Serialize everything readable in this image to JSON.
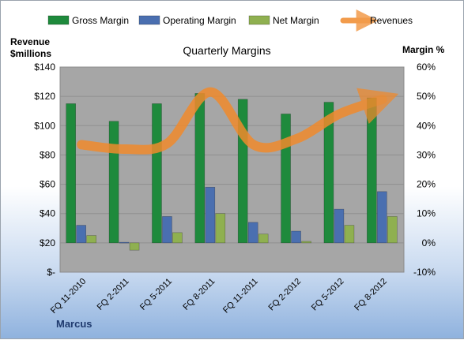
{
  "chart_data": {
    "type": "bar",
    "title": "Quarterly Margins",
    "categories": [
      "FQ 11-2010",
      "FQ 2-2011",
      "FQ 5-2011",
      "FQ 8-2011",
      "FQ 11-2011",
      "FQ 2-2012",
      "FQ 5-2012",
      "FQ 8-2012"
    ],
    "series": [
      {
        "name": "Gross Margin",
        "axis": "right",
        "color": "#1e8a3c",
        "values": [
          47.5,
          41.5,
          47.5,
          51.0,
          49.0,
          44.0,
          48.0,
          49.5
        ]
      },
      {
        "name": "Operating Margin",
        "axis": "right",
        "color": "#4a6fb0",
        "values": [
          6.0,
          0.2,
          9.0,
          19.0,
          7.0,
          4.0,
          11.5,
          17.5
        ]
      },
      {
        "name": "Net Margin",
        "axis": "right",
        "color": "#8fb050",
        "values": [
          2.5,
          -2.5,
          3.5,
          10.0,
          3.0,
          0.5,
          6.0,
          9.0
        ]
      },
      {
        "name": "Revenues",
        "axis": "left",
        "type": "line",
        "color": "#f08a2c",
        "values": [
          87,
          84,
          88,
          123,
          87,
          91,
          108,
          118
        ]
      }
    ],
    "left_axis": {
      "label_line1": "Revenue",
      "label_line2": "$millions",
      "ylim": [
        0,
        140
      ],
      "ticks": [
        "$-",
        "$20",
        "$40",
        "$60",
        "$80",
        "$100",
        "$120",
        "$140"
      ]
    },
    "right_axis": {
      "label": "Margin %",
      "ylim": [
        -10,
        60
      ],
      "ticks": [
        "-10%",
        "0%",
        "10%",
        "20%",
        "30%",
        "40%",
        "50%",
        "60%"
      ]
    },
    "legend_position": "top",
    "grid": true,
    "plot_background": "#a6a6a6"
  },
  "watermark": "Marcus"
}
